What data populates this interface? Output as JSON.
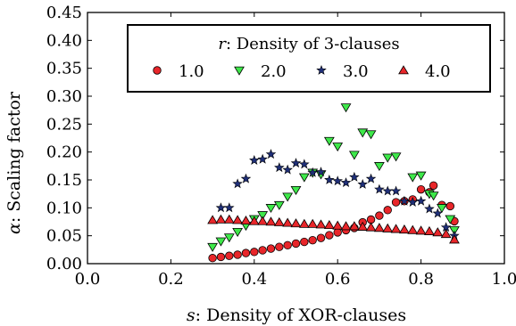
{
  "chart_data": {
    "type": "scatter",
    "xlabel_var": "s",
    "xlabel_text": ": Density of XOR-clauses",
    "ylabel_var": "α",
    "ylabel_text": ": Scaling factor",
    "xlim": [
      0.0,
      1.0
    ],
    "ylim": [
      0.0,
      0.45
    ],
    "xticks": [
      "0.0",
      "0.2",
      "0.4",
      "0.6",
      "0.8",
      "1.0"
    ],
    "yticks": [
      "0.00",
      "0.05",
      "0.10",
      "0.15",
      "0.20",
      "0.25",
      "0.30",
      "0.35",
      "0.40",
      "0.45"
    ],
    "legend": {
      "title_var": "r",
      "title_text": ": Density of 3-clauses",
      "placement": "top-right"
    },
    "series": [
      {
        "name": "1.0",
        "marker": "circle",
        "color": "#e8262a",
        "points": [
          [
            0.3,
            0.01
          ],
          [
            0.32,
            0.012
          ],
          [
            0.34,
            0.014
          ],
          [
            0.36,
            0.016
          ],
          [
            0.38,
            0.019
          ],
          [
            0.4,
            0.021
          ],
          [
            0.42,
            0.024
          ],
          [
            0.44,
            0.027
          ],
          [
            0.46,
            0.03
          ],
          [
            0.48,
            0.033
          ],
          [
            0.5,
            0.036
          ],
          [
            0.52,
            0.039
          ],
          [
            0.54,
            0.042
          ],
          [
            0.56,
            0.046
          ],
          [
            0.58,
            0.051
          ],
          [
            0.6,
            0.056
          ],
          [
            0.62,
            0.06
          ],
          [
            0.64,
            0.064
          ],
          [
            0.66,
            0.074
          ],
          [
            0.68,
            0.079
          ],
          [
            0.7,
            0.086
          ],
          [
            0.72,
            0.096
          ],
          [
            0.74,
            0.11
          ],
          [
            0.76,
            0.112
          ],
          [
            0.78,
            0.115
          ],
          [
            0.8,
            0.133
          ],
          [
            0.82,
            0.128
          ],
          [
            0.83,
            0.14
          ],
          [
            0.85,
            0.105
          ],
          [
            0.87,
            0.103
          ],
          [
            0.88,
            0.076
          ]
        ]
      },
      {
        "name": "2.0",
        "marker": "triangle-down",
        "color": "#3ee84a",
        "points": [
          [
            0.3,
            0.03
          ],
          [
            0.32,
            0.04
          ],
          [
            0.34,
            0.047
          ],
          [
            0.36,
            0.057
          ],
          [
            0.38,
            0.068
          ],
          [
            0.4,
            0.08
          ],
          [
            0.42,
            0.087
          ],
          [
            0.44,
            0.1
          ],
          [
            0.46,
            0.105
          ],
          [
            0.48,
            0.12
          ],
          [
            0.5,
            0.132
          ],
          [
            0.52,
            0.155
          ],
          [
            0.54,
            0.163
          ],
          [
            0.56,
            0.16
          ],
          [
            0.58,
            0.22
          ],
          [
            0.6,
            0.21
          ],
          [
            0.62,
            0.28
          ],
          [
            0.64,
            0.195
          ],
          [
            0.66,
            0.235
          ],
          [
            0.68,
            0.232
          ],
          [
            0.7,
            0.175
          ],
          [
            0.72,
            0.19
          ],
          [
            0.74,
            0.192
          ],
          [
            0.78,
            0.155
          ],
          [
            0.8,
            0.158
          ],
          [
            0.82,
            0.125
          ],
          [
            0.83,
            0.122
          ],
          [
            0.85,
            0.1
          ],
          [
            0.87,
            0.08
          ],
          [
            0.88,
            0.06
          ]
        ]
      },
      {
        "name": "3.0",
        "marker": "star",
        "color": "#1f2f78",
        "points": [
          [
            0.32,
            0.1
          ],
          [
            0.34,
            0.1
          ],
          [
            0.36,
            0.143
          ],
          [
            0.38,
            0.152
          ],
          [
            0.4,
            0.185
          ],
          [
            0.42,
            0.187
          ],
          [
            0.44,
            0.196
          ],
          [
            0.46,
            0.172
          ],
          [
            0.48,
            0.168
          ],
          [
            0.5,
            0.18
          ],
          [
            0.52,
            0.178
          ],
          [
            0.54,
            0.163
          ],
          [
            0.56,
            0.164
          ],
          [
            0.58,
            0.15
          ],
          [
            0.6,
            0.148
          ],
          [
            0.62,
            0.145
          ],
          [
            0.64,
            0.155
          ],
          [
            0.66,
            0.142
          ],
          [
            0.68,
            0.152
          ],
          [
            0.7,
            0.133
          ],
          [
            0.72,
            0.13
          ],
          [
            0.74,
            0.13
          ],
          [
            0.76,
            0.112
          ],
          [
            0.78,
            0.11
          ],
          [
            0.8,
            0.112
          ],
          [
            0.82,
            0.098
          ],
          [
            0.84,
            0.09
          ],
          [
            0.86,
            0.065
          ],
          [
            0.88,
            0.05
          ]
        ]
      },
      {
        "name": "4.0",
        "marker": "triangle-up",
        "color": "#e8262a",
        "points": [
          [
            0.3,
            0.078
          ],
          [
            0.32,
            0.079
          ],
          [
            0.34,
            0.079
          ],
          [
            0.36,
            0.078
          ],
          [
            0.38,
            0.077
          ],
          [
            0.4,
            0.076
          ],
          [
            0.42,
            0.076
          ],
          [
            0.44,
            0.075
          ],
          [
            0.46,
            0.074
          ],
          [
            0.48,
            0.073
          ],
          [
            0.5,
            0.072
          ],
          [
            0.52,
            0.071
          ],
          [
            0.54,
            0.071
          ],
          [
            0.56,
            0.07
          ],
          [
            0.58,
            0.069
          ],
          [
            0.6,
            0.068
          ],
          [
            0.62,
            0.067
          ],
          [
            0.64,
            0.067
          ],
          [
            0.66,
            0.066
          ],
          [
            0.68,
            0.065
          ],
          [
            0.7,
            0.064
          ],
          [
            0.72,
            0.063
          ],
          [
            0.74,
            0.062
          ],
          [
            0.76,
            0.061
          ],
          [
            0.78,
            0.06
          ],
          [
            0.8,
            0.059
          ],
          [
            0.82,
            0.058
          ],
          [
            0.84,
            0.056
          ],
          [
            0.86,
            0.053
          ],
          [
            0.88,
            0.043
          ]
        ]
      }
    ]
  }
}
